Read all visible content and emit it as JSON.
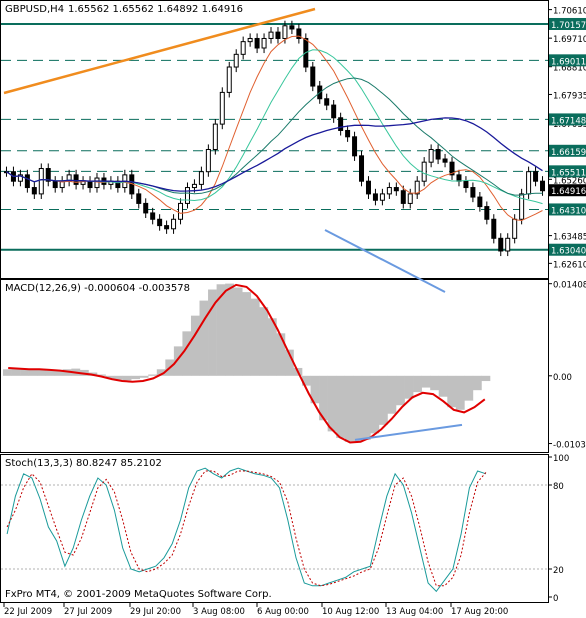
{
  "symbol": "GBPUSD,H4",
  "ohlc": "1.65562 1.65562 1.64892 1.64916",
  "price_axis": {
    "ticks": [
      "1.70610",
      "1.69710",
      "1.68810",
      "1.67935",
      "1.67035",
      "1.66135",
      "1.65260",
      "1.64360",
      "1.63485",
      "1.62610"
    ],
    "levels": [
      {
        "value": "1.70157",
        "style": "solid"
      },
      {
        "value": "1.69011",
        "style": "dashed"
      },
      {
        "value": "1.67148",
        "style": "dashed"
      },
      {
        "value": "1.66159",
        "style": "dashed"
      },
      {
        "value": "1.65511",
        "style": "dashed"
      },
      {
        "value": "1.64310",
        "style": "dashed"
      },
      {
        "value": "1.63040",
        "style": "solid"
      }
    ],
    "current": "1.64916",
    "range": [
      1.6218,
      1.7085
    ]
  },
  "macd": {
    "label": "MACD(12,26,9) -0.000604 -0.003578",
    "ticks": [
      "0.014089",
      "0.00",
      "-0.010359"
    ],
    "range": [
      -0.0115,
      0.0145
    ],
    "histogram": [
      0.001,
      0.0011,
      0.0011,
      0.001,
      0.0009,
      0.0008,
      0.0009,
      0.001,
      0.0011,
      0.0009,
      0.0005,
      0.0002,
      -0.0004,
      -0.0006,
      -0.0007,
      -0.0005,
      -0.0003,
      0.0002,
      0.001,
      0.0025,
      0.0045,
      0.0068,
      0.0092,
      0.0115,
      0.0132,
      0.014,
      0.0141,
      0.0135,
      0.0128,
      0.0118,
      0.0105,
      0.0088,
      0.0065,
      0.004,
      0.0012,
      -0.0015,
      -0.0042,
      -0.0068,
      -0.0085,
      -0.0095,
      -0.0101,
      -0.0102,
      -0.0098,
      -0.0088,
      -0.0075,
      -0.0058,
      -0.0045,
      -0.0035,
      -0.0025,
      -0.0018,
      -0.0022,
      -0.0032,
      -0.0048,
      -0.0052,
      -0.0038,
      -0.0022,
      -0.0008
    ],
    "signal": [
      0.0012,
      0.0011,
      0.001,
      0.001,
      0.0009,
      0.0008,
      0.0006,
      0.0004,
      0.0002,
      -0.0001,
      -0.0005,
      -0.0008,
      -0.0009,
      -0.0008,
      -0.0004,
      0.0004,
      0.0018,
      0.0038,
      0.0062,
      0.0088,
      0.0112,
      0.013,
      0.0139,
      0.0136,
      0.0122,
      0.01,
      0.0071,
      0.0038,
      0.0005,
      -0.0027,
      -0.0055,
      -0.0078,
      -0.0094,
      -0.0102,
      -0.0101,
      -0.0094,
      -0.0082,
      -0.0066,
      -0.0048,
      -0.0033,
      -0.0026,
      -0.0028,
      -0.0039,
      -0.0052,
      -0.0056,
      -0.0048,
      -0.0036
    ],
    "trendline": [
      [
        -0.0098
      ],
      [
        -0.0075
      ]
    ]
  },
  "stoch": {
    "label": "Stoch(13,3,3) 80.8247 85.2102",
    "ticks": [
      "100",
      "80",
      "20",
      "0"
    ],
    "main": [
      45,
      72,
      88,
      85,
      70,
      50,
      40,
      22,
      35,
      55,
      72,
      85,
      80,
      62,
      35,
      20,
      18,
      20,
      22,
      28,
      38,
      55,
      78,
      90,
      92,
      88,
      85,
      90,
      92,
      90,
      88,
      87,
      85,
      78,
      55,
      28,
      10,
      8,
      8,
      10,
      12,
      14,
      18,
      20,
      22,
      48,
      72,
      88,
      80,
      60,
      35,
      10,
      4,
      12,
      20,
      45,
      78,
      90,
      88
    ],
    "signal": [
      50,
      62,
      78,
      88,
      82,
      65,
      48,
      32,
      30,
      42,
      60,
      78,
      84,
      75,
      55,
      32,
      20,
      18,
      20,
      24,
      30,
      45,
      65,
      82,
      90,
      90,
      86,
      87,
      90,
      90,
      89,
      88,
      86,
      82,
      68,
      42,
      20,
      10,
      8,
      9,
      11,
      13,
      15,
      18,
      20,
      35,
      58,
      80,
      85,
      72,
      50,
      25,
      8,
      8,
      14,
      30,
      60,
      82,
      89
    ],
    "levels": [
      80,
      20
    ]
  },
  "time_axis": [
    "22 Jul 2009",
    "27 Jul 2009",
    "29 Jul 20:00",
    "3 Aug 08:00",
    "6 Aug 00:00",
    "10 Aug 12:00",
    "13 Aug 04:00",
    "17 Aug 20:00"
  ],
  "copyright": "FxPro MT4, © 2001-2009 MetaQuotes Software Corp.",
  "colors": {
    "candles": "#000000",
    "level_line": "#0a6d5c",
    "current_price_box": "#000000",
    "orange_trendline": "#f08c1e",
    "ma_red": "#e06030",
    "ma_green": "#38c69c",
    "ma_teal": "#1a7a6a",
    "ma_navy": "#1a1a9a",
    "trend_blue": "#6a9ae0",
    "macd_hist": "#c0c0c0",
    "macd_signal": "#e00000",
    "stoch_main": "#1a9a9a",
    "stoch_signal": "#c00000"
  }
}
